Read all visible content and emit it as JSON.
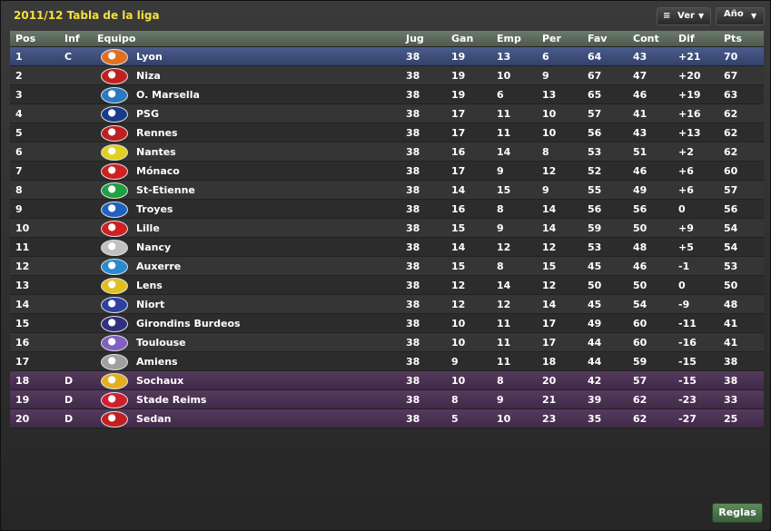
{
  "header": {
    "title": "2011/12 Tabla de la liga",
    "buttons": [
      "Ver",
      "Año"
    ]
  },
  "table": {
    "columns": [
      "Pos",
      "Inf",
      "Equipo",
      "Jug",
      "Gan",
      "Emp",
      "Per",
      "Fav",
      "Cont",
      "Dif",
      "Pts"
    ],
    "rows": [
      [
        "1",
        "C",
        "Lyon",
        "38",
        "19",
        "13",
        "6",
        "64",
        "43",
        "+21",
        "70"
      ],
      [
        "2",
        null,
        "Niza",
        "38",
        "19",
        "10",
        "9",
        "67",
        "47",
        "+20",
        "67"
      ],
      [
        "3",
        null,
        "O. Marsella",
        "38",
        "19",
        "6",
        "13",
        "65",
        "46",
        "+19",
        "63"
      ],
      [
        "4",
        null,
        "PSG",
        "38",
        "17",
        "11",
        "10",
        "57",
        "41",
        "+16",
        "62"
      ],
      [
        "5",
        null,
        "Rennes",
        "38",
        "17",
        "11",
        "10",
        "56",
        "43",
        "+13",
        "62"
      ],
      [
        "6",
        null,
        "Nantes",
        "38",
        "16",
        "14",
        "8",
        "53",
        "51",
        "+2",
        "62"
      ],
      [
        "7",
        null,
        "Mónaco",
        "38",
        "17",
        "9",
        "12",
        "52",
        "46",
        "+6",
        "60"
      ],
      [
        "8",
        null,
        "St-Etienne",
        "38",
        "14",
        "15",
        "9",
        "55",
        "49",
        "+6",
        "57"
      ],
      [
        "9",
        null,
        "Troyes",
        "38",
        "16",
        "8",
        "14",
        "56",
        "56",
        "0",
        "56"
      ],
      [
        "10",
        null,
        "Lille",
        "38",
        "15",
        "9",
        "14",
        "59",
        "50",
        "+9",
        "54"
      ],
      [
        "11",
        null,
        "Nancy",
        "38",
        "14",
        "12",
        "12",
        "53",
        "48",
        "+5",
        "54"
      ],
      [
        "12",
        null,
        "Auxerre",
        "38",
        "15",
        "8",
        "15",
        "45",
        "46",
        "-1",
        "53"
      ],
      [
        "13",
        null,
        "Lens",
        "38",
        "12",
        "14",
        "12",
        "50",
        "50",
        "0",
        "50"
      ],
      [
        "14",
        null,
        "Niort",
        "38",
        "12",
        "12",
        "14",
        "45",
        "54",
        "-9",
        "48"
      ],
      [
        "15",
        null,
        "Girondins Burdeos",
        "38",
        "10",
        "11",
        "17",
        "49",
        "60",
        "-11",
        "41"
      ],
      [
        "16",
        null,
        "Toulouse",
        "38",
        "10",
        "11",
        "17",
        "44",
        "60",
        "-16",
        "41"
      ],
      [
        "17",
        null,
        "Amiens",
        "38",
        "9",
        "11",
        "18",
        "44",
        "59",
        "-15",
        "38"
      ],
      [
        "18",
        "D",
        "Sochaux",
        "38",
        "10",
        "8",
        "20",
        "42",
        "57",
        "-15",
        "38"
      ],
      [
        "19",
        "D",
        "Stade Reims",
        "38",
        "8",
        "9",
        "21",
        "39",
        "62",
        "-23",
        "33"
      ],
      [
        "20",
        "D",
        "Sedan",
        "38",
        "5",
        "10",
        "23",
        "35",
        "62",
        "-27",
        "25"
      ]
    ]
  },
  "footer": {
    "button": "Reglas"
  }
}
